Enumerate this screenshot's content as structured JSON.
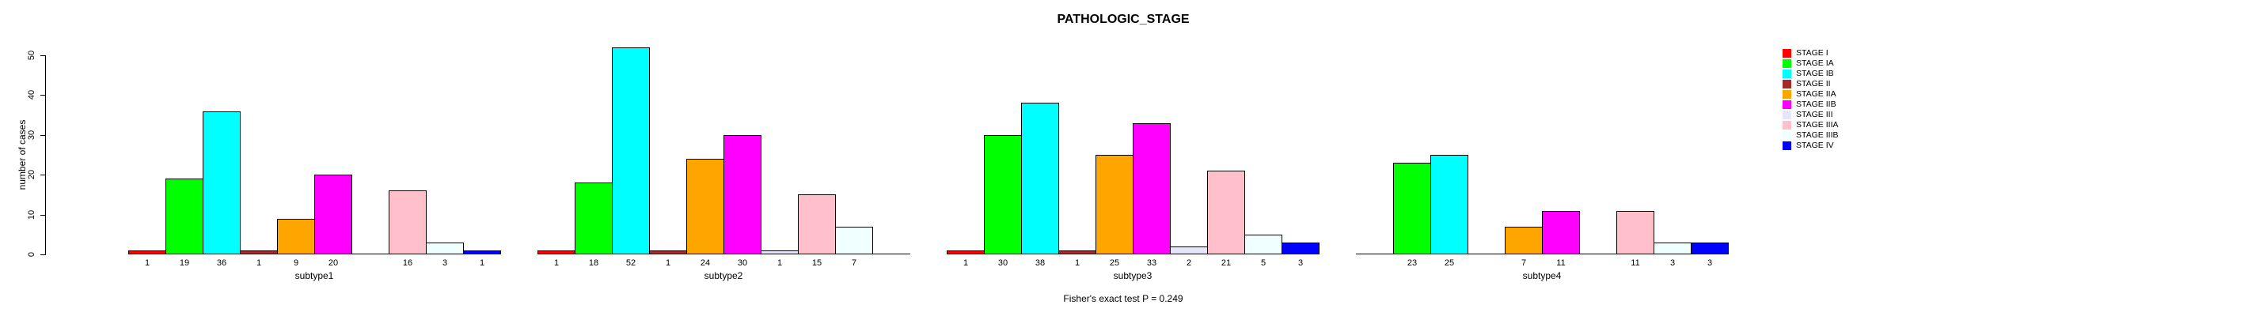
{
  "chart_data": {
    "type": "bar",
    "title": "PATHOLOGIC_STAGE",
    "ylabel": "number of cases",
    "xlabel": "",
    "ylim": [
      0,
      50
    ],
    "yticks": [
      0,
      10,
      20,
      30,
      40,
      50
    ],
    "grid": false,
    "legend_position": "right",
    "annotation": "Fisher's exact test P = 0.249",
    "stages": [
      "STAGE I",
      "STAGE IA",
      "STAGE IB",
      "STAGE II",
      "STAGE IIA",
      "STAGE IIB",
      "STAGE III",
      "STAGE IIIA",
      "STAGE IIIB",
      "STAGE IV"
    ],
    "colors": [
      "#FF0000",
      "#00FF00",
      "#00FFFF",
      "#A52A2A",
      "#FFA500",
      "#FF00FF",
      "#E6E6FA",
      "#FFC0CB",
      "#F0FFFF",
      "#0000FF"
    ],
    "groups": [
      {
        "label": "subtype1",
        "values": [
          1,
          19,
          36,
          1,
          9,
          20,
          0,
          16,
          3,
          1
        ]
      },
      {
        "label": "subtype2",
        "values": [
          1,
          18,
          52,
          1,
          24,
          30,
          1,
          15,
          7,
          0
        ]
      },
      {
        "label": "subtype3",
        "values": [
          1,
          30,
          38,
          1,
          25,
          33,
          2,
          21,
          5,
          3
        ]
      },
      {
        "label": "subtype4",
        "values": [
          0,
          23,
          25,
          0,
          7,
          11,
          0,
          11,
          3,
          3
        ]
      }
    ]
  }
}
